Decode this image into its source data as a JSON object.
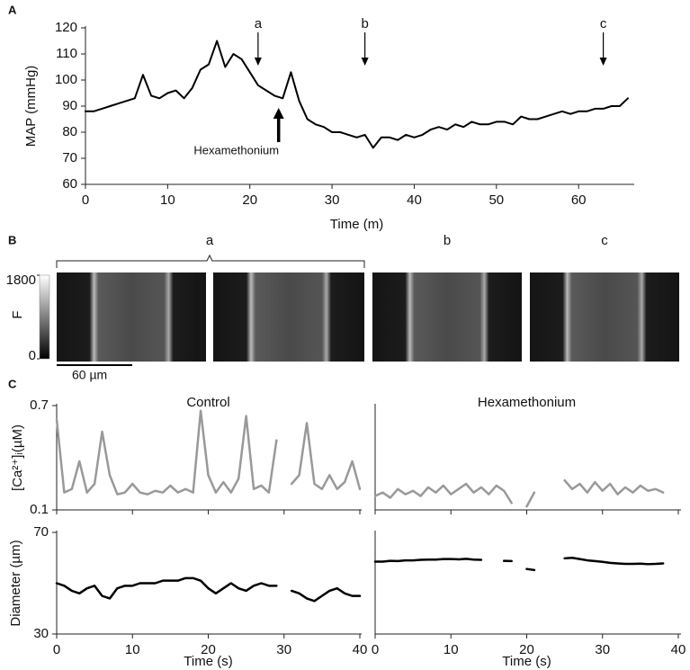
{
  "chart_data": [
    {
      "type": "line",
      "panel_label": "A",
      "xlabel": "Time (m)",
      "ylabel": "MAP (mmHg)",
      "color": "#000000",
      "x": [
        0,
        1,
        2,
        3,
        4,
        5,
        6,
        7,
        8,
        9,
        10,
        11,
        12,
        13,
        14,
        15,
        16,
        17,
        18,
        19,
        20,
        21,
        22,
        23,
        24,
        25,
        26,
        27,
        28,
        29,
        30,
        31,
        32,
        33,
        34,
        35,
        36,
        37,
        38,
        39,
        40,
        41,
        42,
        43,
        44,
        45,
        46,
        47,
        48,
        49,
        50,
        51,
        52,
        53,
        54,
        55,
        56,
        57,
        58,
        59,
        60,
        61,
        62,
        63,
        64,
        65,
        66
      ],
      "values": [
        88,
        88,
        89,
        90,
        91,
        92,
        93,
        102,
        94,
        93,
        95,
        96,
        93,
        97,
        104,
        106,
        115,
        105,
        110,
        108,
        103,
        98,
        96,
        94,
        93,
        103,
        92,
        85,
        83,
        82,
        80,
        80,
        79,
        78,
        79,
        74,
        78,
        78,
        77,
        79,
        78,
        79,
        81,
        82,
        81,
        83,
        82,
        84,
        83,
        83,
        84,
        84,
        83,
        86,
        85,
        85,
        86,
        87,
        88,
        87,
        88,
        88,
        89,
        89,
        90,
        90,
        93
      ],
      "xlim": [
        0,
        66
      ],
      "ylim": [
        60,
        120
      ],
      "xticks": [
        0,
        10,
        20,
        30,
        40,
        50,
        60
      ],
      "yticks": [
        60,
        70,
        80,
        90,
        100,
        110,
        120
      ],
      "annotations": [
        "a",
        "b",
        "c",
        "Hexamethonium"
      ]
    },
    {
      "type": "line",
      "panel_label": "C",
      "title": "Control",
      "ylabel": "[Ca²⁺]ᵢ(µM)",
      "color": "#999999",
      "x": [
        0,
        1,
        2,
        3,
        4,
        5,
        6,
        7,
        8,
        9,
        10,
        11,
        12,
        13,
        14,
        15,
        16,
        17,
        18,
        19,
        20,
        21,
        22,
        23,
        24,
        25,
        26,
        27,
        28,
        29,
        30,
        31,
        32,
        33,
        34,
        35,
        36,
        37,
        38,
        39,
        40
      ],
      "values": [
        0.62,
        0.2,
        0.22,
        0.38,
        0.2,
        0.25,
        0.55,
        0.3,
        0.19,
        0.2,
        0.25,
        0.2,
        0.19,
        0.21,
        0.2,
        0.24,
        0.2,
        0.22,
        0.2,
        0.67,
        0.3,
        0.2,
        0.26,
        0.2,
        0.28,
        0.64,
        0.22,
        0.24,
        0.2,
        0.5,
        null,
        0.25,
        0.3,
        0.6,
        0.25,
        0.22,
        0.3,
        0.22,
        0.26,
        0.38,
        0.22
      ],
      "xlim": [
        0,
        40
      ],
      "ylim": [
        0.1,
        0.7
      ],
      "xticks": [
        0,
        10,
        20,
        30,
        40
      ],
      "yticks": [
        0.1,
        0.7
      ]
    },
    {
      "type": "line",
      "title": "Hexamethonium",
      "color": "#999999",
      "x": [
        0,
        1,
        2,
        3,
        4,
        5,
        6,
        7,
        8,
        9,
        10,
        11,
        12,
        13,
        14,
        15,
        16,
        17,
        18,
        19,
        20,
        21,
        22,
        23,
        24,
        25,
        26,
        27,
        28,
        29,
        30,
        31,
        32,
        33,
        34,
        35,
        36,
        37,
        38
      ],
      "values": [
        0.18,
        0.2,
        0.17,
        0.22,
        0.19,
        0.21,
        0.18,
        0.23,
        0.2,
        0.24,
        0.19,
        0.22,
        0.25,
        0.2,
        0.23,
        0.19,
        0.24,
        0.21,
        0.14,
        null,
        0.12,
        0.2,
        null,
        null,
        null,
        0.27,
        0.22,
        0.25,
        0.2,
        0.26,
        0.21,
        0.25,
        0.19,
        0.23,
        0.2,
        0.24,
        0.21,
        0.22,
        0.2
      ],
      "xlim": [
        0,
        40
      ],
      "ylim": [
        0.1,
        0.7
      ],
      "xticks": [
        0,
        10,
        20,
        30,
        40
      ]
    },
    {
      "type": "line",
      "xlabel": "Time (s)",
      "ylabel": "Diameter (µm)",
      "color": "#000000",
      "x": [
        0,
        1,
        2,
        3,
        4,
        5,
        6,
        7,
        8,
        9,
        10,
        11,
        12,
        13,
        14,
        15,
        16,
        17,
        18,
        19,
        20,
        21,
        22,
        23,
        24,
        25,
        26,
        27,
        28,
        29,
        30,
        31,
        32,
        33,
        34,
        35,
        36,
        37,
        38,
        39,
        40
      ],
      "values": [
        50,
        49,
        47,
        46,
        48,
        49,
        45,
        44,
        48,
        49,
        49,
        50,
        50,
        50,
        51,
        51,
        51,
        52,
        52,
        51,
        48,
        46,
        48,
        50,
        48,
        47,
        49,
        50,
        49,
        49,
        null,
        47,
        46,
        44,
        43,
        45,
        47,
        48,
        46,
        45,
        45
      ],
      "xlim": [
        0,
        40
      ],
      "ylim": [
        30,
        70
      ],
      "xticks": [
        0,
        10,
        20,
        30,
        40
      ],
      "yticks": [
        30,
        70
      ]
    },
    {
      "type": "line",
      "xlabel": "Time (s)",
      "color": "#000000",
      "x": [
        0,
        1,
        2,
        3,
        4,
        5,
        6,
        7,
        8,
        9,
        10,
        11,
        12,
        13,
        14,
        15,
        16,
        17,
        18,
        19,
        20,
        21,
        22,
        23,
        24,
        25,
        26,
        27,
        28,
        29,
        30,
        31,
        32,
        33,
        34,
        35,
        36,
        37,
        38
      ],
      "values": [
        58.5,
        58.5,
        58.8,
        58.7,
        59,
        59,
        59.2,
        59.3,
        59.3,
        59.5,
        59.5,
        59.4,
        59.6,
        59.3,
        59.2,
        null,
        null,
        58.8,
        58.7,
        null,
        55.6,
        55.2,
        null,
        null,
        null,
        59.8,
        60,
        59.5,
        59,
        58.7,
        58.4,
        58,
        57.8,
        57.6,
        57.6,
        57.7,
        57.5,
        57.6,
        57.8
      ],
      "xlim": [
        0,
        40
      ],
      "ylim": [
        30,
        70
      ],
      "xticks": [
        0,
        10,
        20,
        30,
        40
      ]
    }
  ],
  "panel_b": {
    "label": "B",
    "image_labels": [
      "a",
      "b",
      "c"
    ],
    "colorbar": {
      "label": "F",
      "lim": [
        0,
        1800
      ],
      "ticks": [
        0,
        1800
      ]
    },
    "scale_bar": "60 µm"
  }
}
